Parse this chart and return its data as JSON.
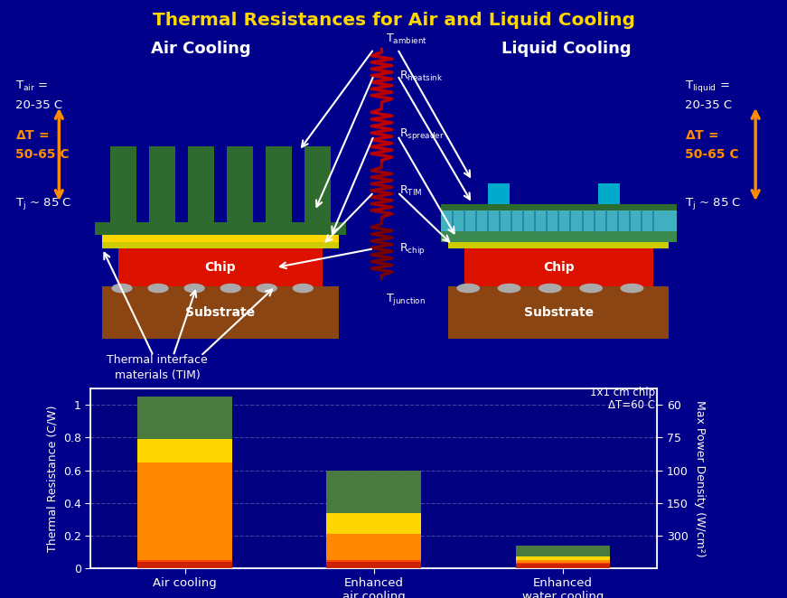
{
  "title": "Thermal Resistances for Air and Liquid Cooling",
  "bg_color": "#00008B",
  "title_color": "#FFD700",
  "chart_bg": "#000080",
  "grid_color": "#5555AA",
  "text_color": "#FFFFFF",
  "axis_color": "#FFFFFF",
  "bar_width": 0.5,
  "ylabel_left": "Thermal Resistance (C/W)",
  "ylabel_right": "Max Power Density (W/cm²)",
  "annotation_line1": "1x1 cm chip",
  "annotation_line2": "ΔT=60 C",
  "air_cooling_stack": [
    0.04,
    0.01,
    0.6,
    0.14,
    0.26
  ],
  "enhanced_air_stack": [
    0.04,
    0.01,
    0.16,
    0.13,
    0.26
  ],
  "enhanced_water_stack": [
    0.025,
    0.01,
    0.015,
    0.02,
    0.07
  ],
  "seg_colors": [
    "#CC2200",
    "#FF4400",
    "#FF8800",
    "#FFD700",
    "#4a7a40"
  ]
}
